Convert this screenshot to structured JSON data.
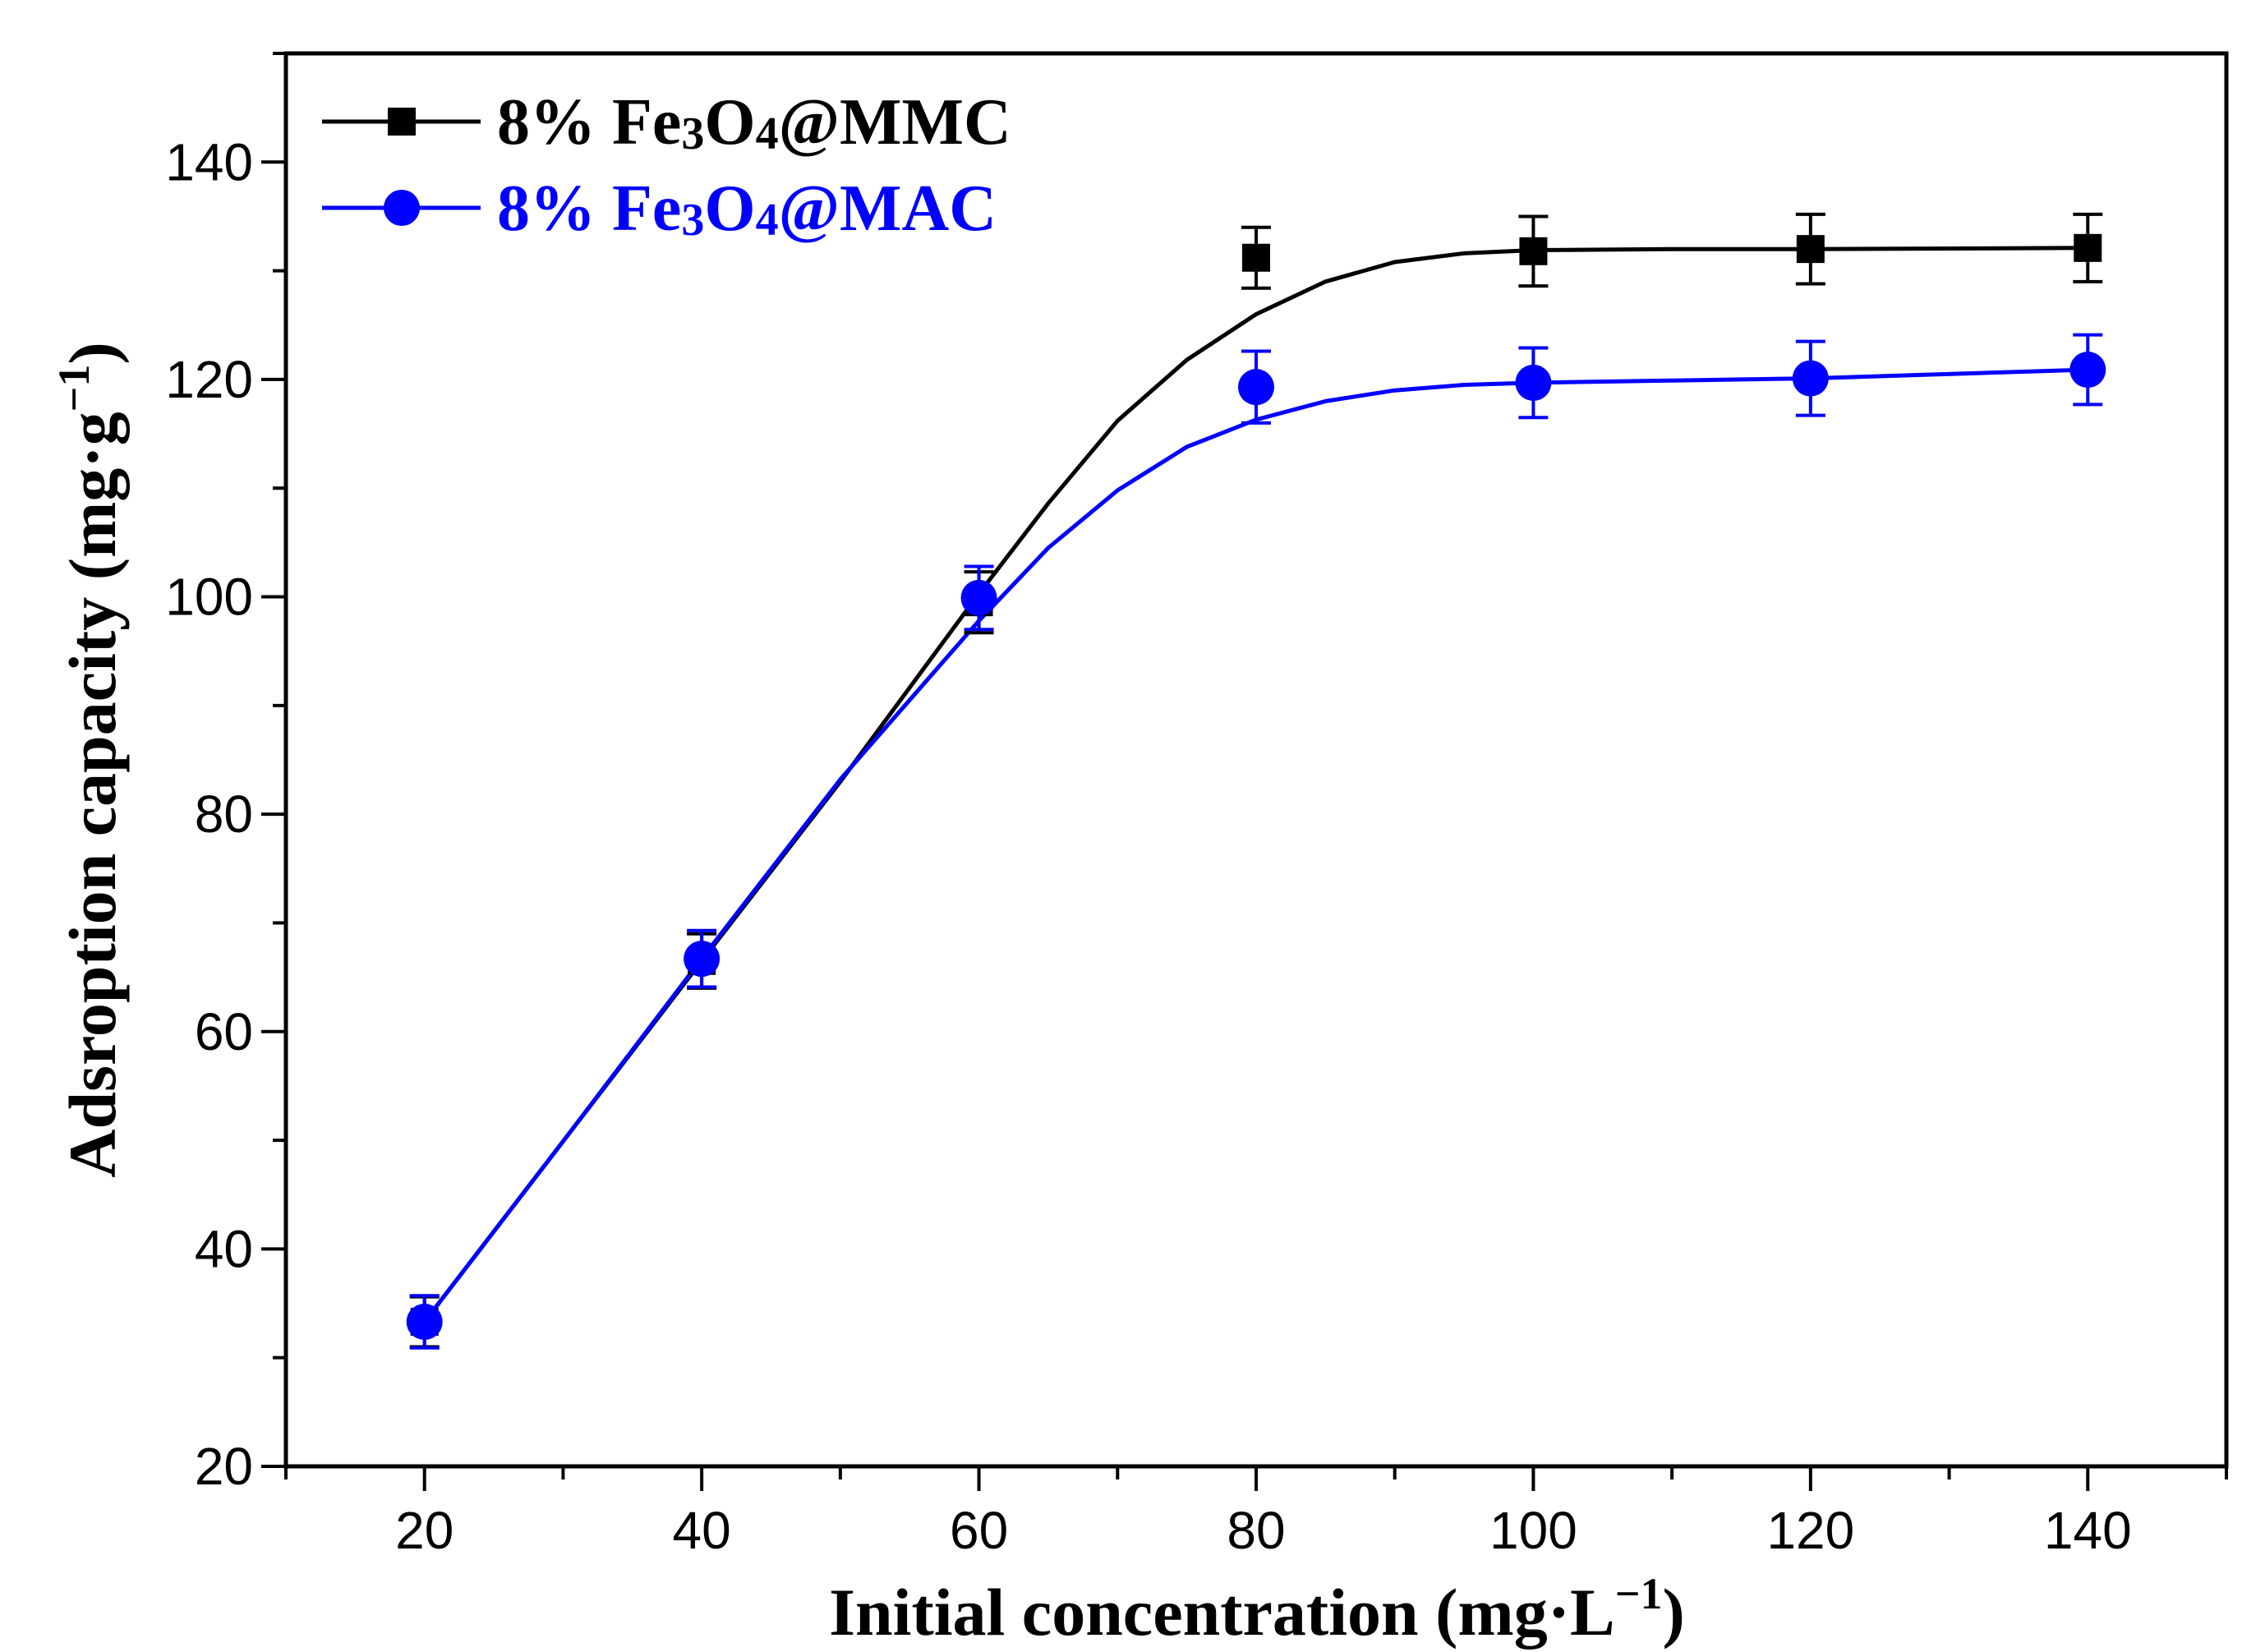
{
  "chart_data": {
    "type": "line",
    "title": "",
    "xlabel": "Initial concentration (mg·L",
    "xlabel_sup": "−1",
    "xlabel_end": ")",
    "ylabel": "Adsroption capacity (mg·g",
    "ylabel_sup": "−1",
    "ylabel_end": ")",
    "xlim": [
      10,
      150
    ],
    "ylim": [
      20,
      150
    ],
    "xticks": [
      20,
      40,
      60,
      80,
      100,
      120,
      140
    ],
    "yticks": [
      20,
      40,
      60,
      80,
      100,
      120,
      140
    ],
    "x_minor_step": 10,
    "y_minor_step": 10,
    "legend_position": "top-left",
    "series": [
      {
        "name": "8% Fe3O4@MMC",
        "legend": {
          "prefix": "8% Fe",
          "sub1": "3",
          "mid": "O",
          "sub2": "4",
          "suffix": "@MMC"
        },
        "color": "#000000",
        "marker": "square",
        "x": [
          20,
          40,
          60,
          80,
          100,
          120,
          140
        ],
        "y": [
          33.3,
          66.5,
          99.5,
          131.2,
          131.8,
          132.0,
          132.1
        ],
        "err": [
          2.3,
          2.5,
          2.8,
          2.8,
          3.2,
          3.2,
          3.1
        ],
        "fit": [
          [
            20,
            33.3
          ],
          [
            30,
            49.9
          ],
          [
            40,
            66.5
          ],
          [
            50,
            83.0
          ],
          [
            60,
            100.3
          ],
          [
            65,
            108.6
          ],
          [
            70,
            116.2
          ],
          [
            75,
            121.8
          ],
          [
            80,
            126.0
          ],
          [
            85,
            129.0
          ],
          [
            90,
            130.8
          ],
          [
            95,
            131.6
          ],
          [
            100,
            131.9
          ],
          [
            110,
            132.0
          ],
          [
            120,
            132.0
          ],
          [
            140,
            132.1
          ]
        ]
      },
      {
        "name": "8% Fe3O4@MAC",
        "legend": {
          "prefix": "8% Fe",
          "sub1": "3",
          "mid": "O",
          "sub2": "4",
          "suffix": "@MAC"
        },
        "color": "#0000ff",
        "marker": "circle",
        "x": [
          20,
          40,
          60,
          80,
          100,
          120,
          140
        ],
        "y": [
          33.3,
          66.7,
          99.9,
          119.3,
          119.7,
          120.1,
          120.9
        ],
        "err": [
          2.4,
          2.6,
          2.9,
          3.3,
          3.2,
          3.4,
          3.2
        ],
        "fit": [
          [
            20,
            33.3
          ],
          [
            30,
            49.9
          ],
          [
            40,
            66.7
          ],
          [
            50,
            83.2
          ],
          [
            60,
            97.8
          ],
          [
            65,
            104.5
          ],
          [
            70,
            109.8
          ],
          [
            75,
            113.8
          ],
          [
            80,
            116.3
          ],
          [
            85,
            118.0
          ],
          [
            90,
            119.0
          ],
          [
            95,
            119.5
          ],
          [
            100,
            119.7
          ],
          [
            110,
            119.9
          ],
          [
            120,
            120.1
          ],
          [
            140,
            120.9
          ]
        ]
      }
    ]
  }
}
